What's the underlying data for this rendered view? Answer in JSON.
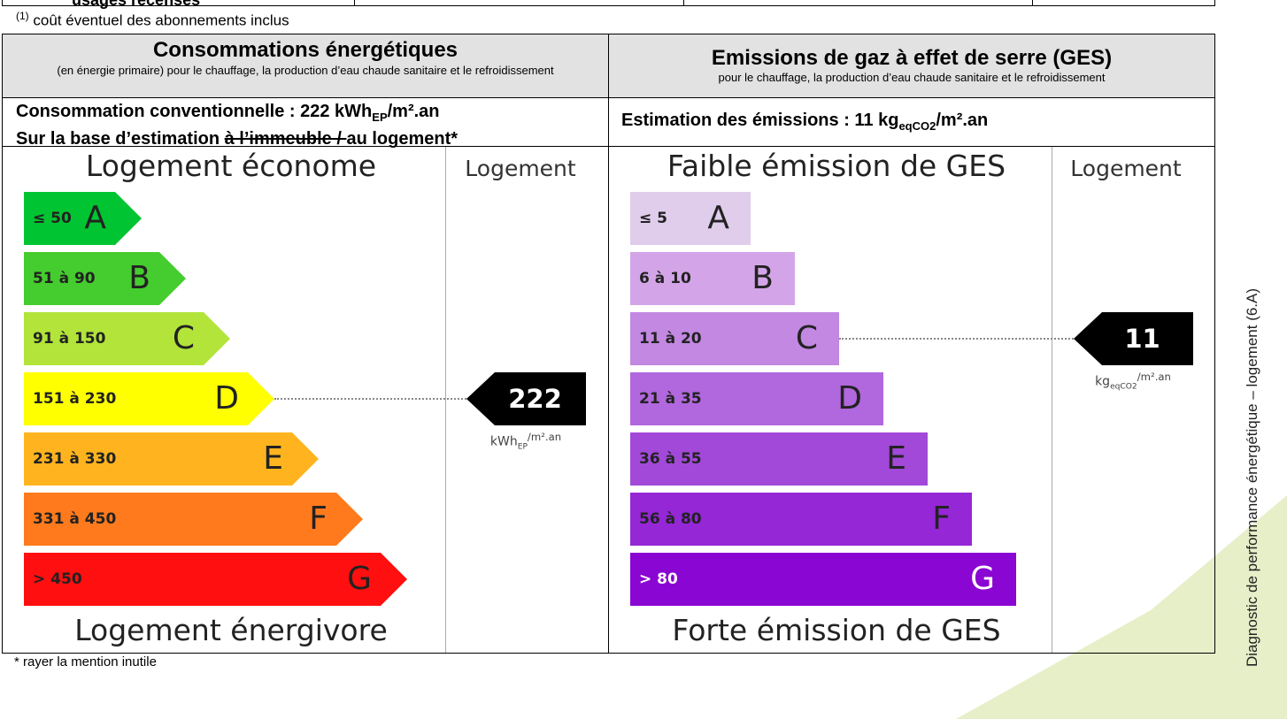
{
  "top_row": {
    "text": "usages recensés"
  },
  "footnote": {
    "marker": "(1)",
    "text": "coût éventuel des abonnements inclus"
  },
  "energy": {
    "title": "Consommations énergétiques",
    "subtitle": "(en énergie primaire) pour le chauffage, la production d’eau chaude sanitaire et le refroidissement",
    "summary": {
      "label": "Consommation conventionnelle : 222 kWh",
      "sub": "EP",
      "unit": "/m².an"
    },
    "basis": {
      "prefix": "Sur la base d’estimation ",
      "struck": "à l’immeuble / ",
      "suffix": "au logement*"
    },
    "top_label": "Logement économe",
    "column_header": "Logement",
    "bottom_label": "Logement énergivore",
    "classes": [
      {
        "range": "≤ 50",
        "letter": "A",
        "color": "#00c431"
      },
      {
        "range": "51 à 90",
        "letter": "B",
        "color": "#45cc2e"
      },
      {
        "range": "91 à 150",
        "letter": "C",
        "color": "#b2e43a"
      },
      {
        "range": "151 à 230",
        "letter": "D",
        "color": "#ffff00"
      },
      {
        "range": "231 à 330",
        "letter": "E",
        "color": "#ffb41f"
      },
      {
        "range": "331 à 450",
        "letter": "F",
        "color": "#ff7a1c"
      },
      {
        "range": "> 450",
        "letter": "G",
        "color": "#ff0f0f"
      }
    ],
    "value": 222,
    "value_unit": {
      "main": "kWh",
      "sub": "EP",
      "rest": "/m².an"
    }
  },
  "ges": {
    "title": "Emissions de gaz à effet de serre (GES)",
    "subtitle": "pour le chauffage, la production d’eau chaude sanitaire et le refroidissement",
    "summary": {
      "label": "Estimation des émissions : 11 kg",
      "sub": "eqCO2",
      "unit": "/m².an"
    },
    "top_label": "Faible émission de GES",
    "column_header": "Logement",
    "bottom_label": "Forte émission de GES",
    "classes": [
      {
        "range": "≤ 5",
        "letter": "A",
        "color": "#e0cdec"
      },
      {
        "range": "6 à 10",
        "letter": "B",
        "color": "#d3a5e8"
      },
      {
        "range": "11 à 20",
        "letter": "C",
        "color": "#c288e2"
      },
      {
        "range": "21 à 35",
        "letter": "D",
        "color": "#b167dd"
      },
      {
        "range": "36 à 55",
        "letter": "E",
        "color": "#a249d9"
      },
      {
        "range": "56 à 80",
        "letter": "F",
        "color": "#9527d6"
      },
      {
        "range": "> 80",
        "letter": "G",
        "color": "#8a06d2"
      }
    ],
    "value": 11,
    "value_unit": {
      "main": "kg",
      "sub": "eqCO2",
      "rest": "/m².an"
    }
  },
  "footer_note": "* rayer la mention inutile",
  "side_label": "Diagnostic de performance énergétique – logement (6.A)"
}
